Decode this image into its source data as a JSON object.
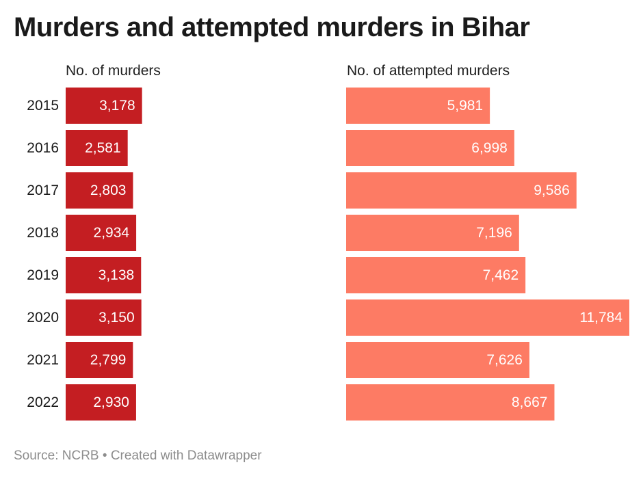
{
  "title": "Murders and attempted murders in Bihar",
  "footer": {
    "source": "Source: NCRB",
    "separator": "•",
    "credit": "Created with Datawrapper"
  },
  "colors": {
    "murders": "#c41e22",
    "attempted_murders": "#fd7b64",
    "bar_label": "#ffffff"
  },
  "chart_data": {
    "type": "bar",
    "orientation": "horizontal",
    "categories": [
      "2015",
      "2016",
      "2017",
      "2018",
      "2019",
      "2020",
      "2021",
      "2022"
    ],
    "series": [
      {
        "name": "No. of murders",
        "values": [
          3178,
          2581,
          2803,
          2934,
          3138,
          3150,
          2799,
          2930
        ],
        "labels": [
          "3,178",
          "2,581",
          "2,803",
          "2,934",
          "3,138",
          "3,150",
          "2,799",
          "2,930"
        ]
      },
      {
        "name": "No. of attempted murders",
        "values": [
          5981,
          6998,
          9586,
          7196,
          7462,
          11784,
          7626,
          8667
        ],
        "labels": [
          "5,981",
          "6,998",
          "9,586",
          "7,196",
          "7,462",
          "11,784",
          "7,626",
          "8,667"
        ]
      }
    ],
    "shared_scale": true,
    "grid": false,
    "legend": "none"
  }
}
